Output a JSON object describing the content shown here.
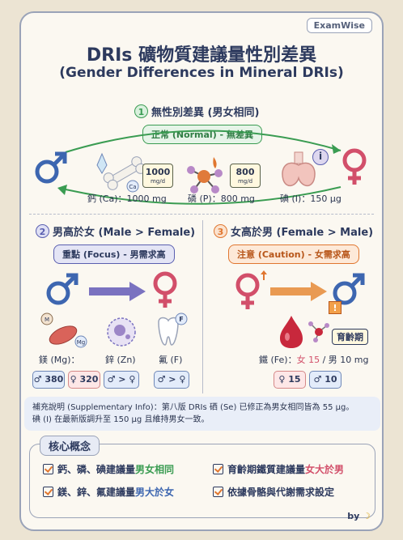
{
  "brand": "ExamWise",
  "title_zh": "DRIs 礦物質建議量性別差異",
  "title_en": "(Gender Differences in Mineral DRIs)",
  "section1": {
    "number": "1",
    "title": "無性別差異 (男女相同)",
    "pill": "正常 (Normal) - 無差異",
    "badges": [
      {
        "value": "1000",
        "unit": "mg/d"
      },
      {
        "value": "800",
        "unit": "mg/d"
      }
    ],
    "minerals": [
      "鈣 (Ca)：1000 mg",
      "磷 (P)：800 mg",
      "碘 (I)：150 µg"
    ],
    "ca_icon_label": "Ca",
    "info_icon": "i"
  },
  "section2": {
    "number": "2",
    "title": "男高於女 (Male > Female)",
    "pill": "重點 (Focus) - 男需求高",
    "minerals": [
      {
        "label": "鎂 (Mg)：",
        "male": "♂ 380",
        "female": "♀ 320"
      },
      {
        "label": "鋅 (Zn)",
        "cmp": "♂ > ♀"
      },
      {
        "label": "氟 (F)",
        "cmp": "♂ > ♀"
      }
    ],
    "icon_tags": [
      "M",
      "Mg",
      "F"
    ]
  },
  "section3": {
    "number": "3",
    "title": "女高於男 (Female > Male)",
    "pill": "注意 (Caution) - 女需求高",
    "age_tag": "育齡期",
    "warn_icon": "!",
    "fe_prefix": "鐵 (Fe)：",
    "fe_female": "女 15",
    "fe_rest": " / 男 10 mg",
    "female_stat": "♀ 15",
    "male_stat": "♂ 10"
  },
  "note_lines": [
    "補充說明 (Supplementary Info)：第八版 DRIs 硒 (Se) 已修正為男女相同皆為 55 µg。",
    "碘 (I) 在最新版調升至 150 µg 且維持男女一致。"
  ],
  "core": {
    "title": "核心概念",
    "items": [
      {
        "pre": "鈣、磷、碘建議量",
        "hl": "男女相同",
        "post": ""
      },
      {
        "pre": "育齡期鐵質建議量",
        "hl": "女大於男",
        "post": ""
      },
      {
        "pre": "鎂、鋅、氟建議量",
        "hl": "男大於女",
        "post": ""
      },
      {
        "pre": "依據骨骼與代謝需求設定",
        "hl": "",
        "post": ""
      }
    ]
  },
  "byline": "by",
  "colors": {
    "male": "#3d66b0",
    "female": "#d24f6a",
    "normal": "#3a9c52",
    "focus": "#5a5fb0",
    "caution": "#e0762f"
  }
}
